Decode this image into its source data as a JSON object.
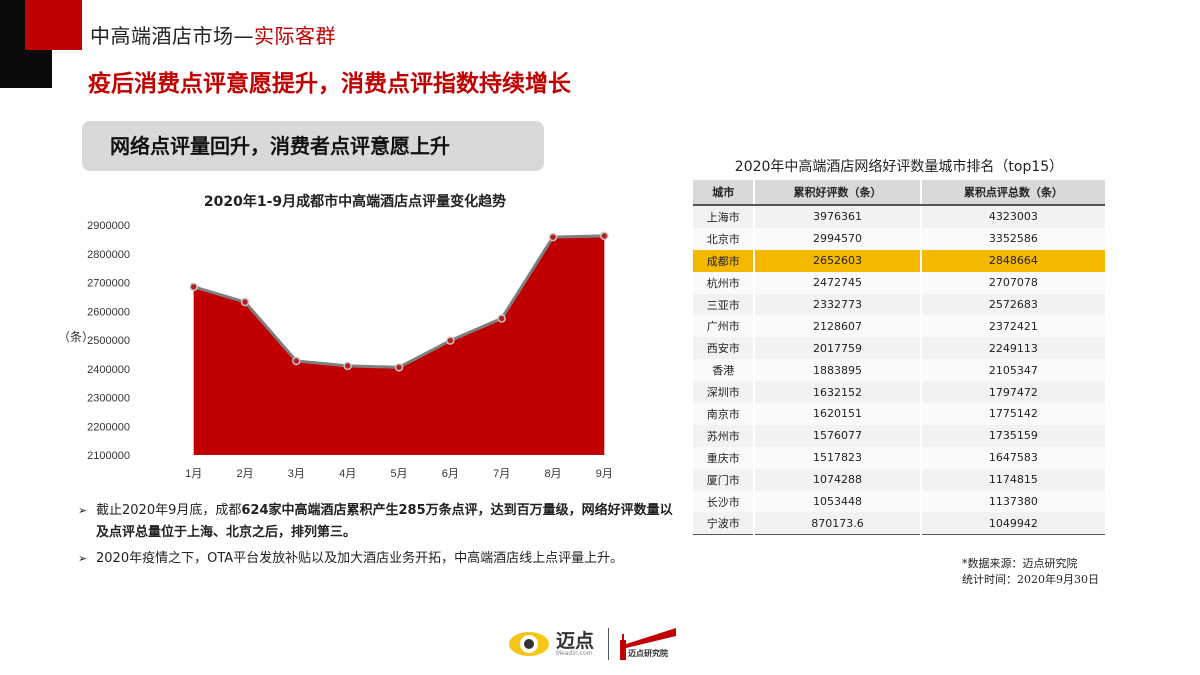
{
  "header": {
    "title_main": "中高端酒店市场",
    "title_dash": "—",
    "title_accent": "实际客群",
    "headline": "疫后消费点评意愿提升，消费点评指数持续增长"
  },
  "section": {
    "label": "网络点评量回升，消费者点评意愿上升"
  },
  "colors": {
    "brand_red": "#c00000",
    "chart_fill": "#c00000",
    "line": "#7f7f7f",
    "highlight": "#f5b800"
  },
  "chart_data": {
    "type": "area",
    "title": "2020年1-9月成都市中高端酒店点评量变化趋势",
    "ylabel": "（条）",
    "categories": [
      "1月",
      "2月",
      "3月",
      "4月",
      "5月",
      "6月",
      "7月",
      "8月",
      "9月"
    ],
    "values": [
      2685000,
      2632000,
      2427000,
      2410000,
      2405000,
      2498000,
      2575000,
      2858000,
      2862000
    ],
    "ylim": [
      2100000,
      2900000
    ],
    "yticks": [
      "2100000",
      "2200000",
      "2300000",
      "2400000",
      "2500000",
      "2600000",
      "2700000",
      "2800000",
      "2900000"
    ],
    "grid": false
  },
  "bullets": [
    {
      "marker": "➢",
      "pre": "截止2020年9月底，成都",
      "bold": "624家中高端酒店累积产生285万条点评，达到百万量级，网络好评数量以及点评总量位于上海、北京之后，排列第三。"
    },
    {
      "marker": "➢",
      "pre": "2020年疫情之下，OTA平台发放补贴以及加大酒店业务开拓，中高端酒店线上点评量上升。",
      "bold": ""
    }
  ],
  "table": {
    "title": "2020年中高端酒店网络好评数量城市排名（top15）",
    "headers": [
      "城市",
      "累积好评数（条）",
      "累积点评总数（条）"
    ],
    "rows": [
      [
        "上海市",
        "3976361",
        "4323003"
      ],
      [
        "北京市",
        "2994570",
        "3352586"
      ],
      [
        "成都市",
        "2652603",
        "2848664"
      ],
      [
        "杭州市",
        "2472745",
        "2707078"
      ],
      [
        "三亚市",
        "2332773",
        "2572683"
      ],
      [
        "广州市",
        "2128607",
        "2372421"
      ],
      [
        "西安市",
        "2017759",
        "2249113"
      ],
      [
        "香港",
        "1883895",
        "2105347"
      ],
      [
        "深圳市",
        "1632152",
        "1797472"
      ],
      [
        "南京市",
        "1620151",
        "1775142"
      ],
      [
        "苏州市",
        "1576077",
        "1735159"
      ],
      [
        "重庆市",
        "1517823",
        "1647583"
      ],
      [
        "厦门市",
        "1074288",
        "1174815"
      ],
      [
        "长沙市",
        "1053448",
        "1137380"
      ],
      [
        "宁波市",
        "870173.6",
        "1049942"
      ]
    ],
    "highlight_city": "成都市"
  },
  "source": {
    "line1": "*数据来源：迈点研究院",
    "line2": "统计时间：2020年9月30日"
  },
  "logo": {
    "brand": "迈点",
    "domain": "Meadin.com",
    "institute": "迈点研究院"
  }
}
